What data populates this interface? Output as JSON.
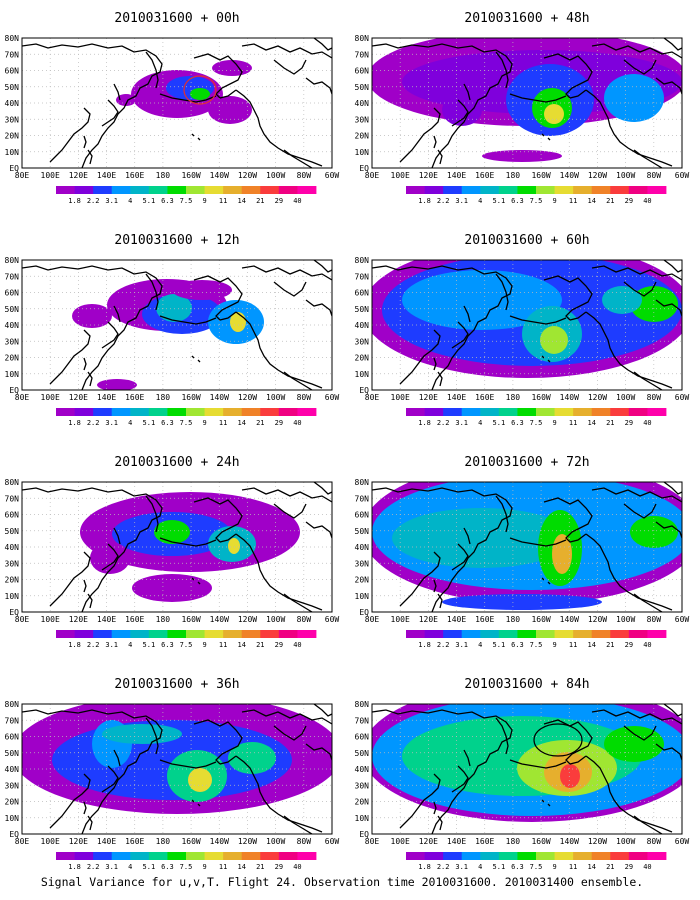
{
  "colors": {
    "map_outline": "#000000",
    "grid": "#bbbbbb",
    "circle_marker": "#000000"
  },
  "colorbar": {
    "labels": [
      "1.8",
      "2.2",
      "3.1",
      "4",
      "5.1",
      "6.3",
      "7.5",
      "9",
      "11",
      "14",
      "21",
      "29",
      "40"
    ],
    "colors": [
      "#a000c8",
      "#7f00dc",
      "#1e3cff",
      "#0096ff",
      "#00b4c8",
      "#00d28c",
      "#00dc00",
      "#a0e632",
      "#e6dc32",
      "#e6af2d",
      "#f08228",
      "#fa3c3c",
      "#f00082",
      "#ff00aa"
    ]
  },
  "map": {
    "lat_labels": [
      "80N",
      "70N",
      "60N",
      "50N",
      "40N",
      "30N",
      "20N",
      "10N",
      "EQ"
    ],
    "lon_labels": [
      "80E",
      "100E",
      "120E",
      "140E",
      "160E",
      "180",
      "160W",
      "140W",
      "120W",
      "100W",
      "80W",
      "60W"
    ]
  },
  "panels": [
    {
      "title": "2010031600 + 00h",
      "lead_hours": 0
    },
    {
      "title": "2010031600 + 48h",
      "lead_hours": 48
    },
    {
      "title": "2010031600 + 12h",
      "lead_hours": 12
    },
    {
      "title": "2010031600 + 60h",
      "lead_hours": 60
    },
    {
      "title": "2010031600 + 24h",
      "lead_hours": 24
    },
    {
      "title": "2010031600 + 72h",
      "lead_hours": 72
    },
    {
      "title": "2010031600 + 36h",
      "lead_hours": 36
    },
    {
      "title": "2010031600 + 84h",
      "lead_hours": 84
    }
  ],
  "caption": "Signal Variance for u,v,T. Flight 24. Observation time 2010031600. 2010031400 ensemble."
}
